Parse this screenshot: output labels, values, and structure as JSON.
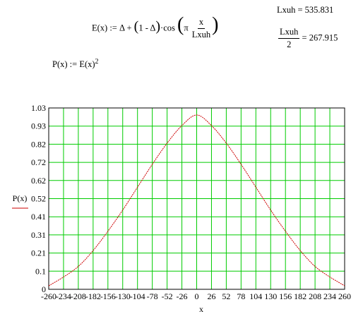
{
  "equations": {
    "E_def": {
      "lhs": "E(x) :=",
      "delta1": "Δ",
      "plus": "+",
      "paren_content_one": "1 -",
      "delta2": "Δ",
      "dot_cos": "·cos",
      "pi": "π",
      "frac_num": "x",
      "frac_den": "Lxuh"
    },
    "P_def": {
      "lhs": "P(x) :=",
      "rhs": "E(x)",
      "exponent": "2"
    },
    "Lxuh_value": {
      "text": "Lxuh = 535.831"
    },
    "half_value": {
      "num": "Lxuh",
      "den": "2",
      "result": "= 267.915"
    }
  },
  "chart_data": {
    "type": "line",
    "ylabel": "P(x)",
    "xlabel": "x",
    "xlim": [
      -260,
      260
    ],
    "ylim": [
      0,
      1.03
    ],
    "grid": true,
    "x_ticks": [
      "-260",
      "-234",
      "-208",
      "-182",
      "-156",
      "-130",
      "-104",
      "-78",
      "-52",
      "-26",
      "0",
      "26",
      "52",
      "78",
      "104",
      "130",
      "156",
      "182",
      "208",
      "234",
      "260"
    ],
    "y_ticks": [
      "0",
      "0.1",
      "0.21",
      "0.31",
      "0.41",
      "0.52",
      "0.62",
      "0.72",
      "0.82",
      "0.93",
      "1.03"
    ],
    "series": [
      {
        "color": "#cc0000",
        "x": [
          -260,
          -234,
          -208,
          -182,
          -156,
          -130,
          -104,
          -78,
          -52,
          -26,
          0,
          26,
          52,
          78,
          104,
          130,
          156,
          182,
          208,
          234,
          260
        ],
        "y": [
          0.02,
          0.07,
          0.13,
          0.22,
          0.33,
          0.45,
          0.58,
          0.71,
          0.83,
          0.93,
          0.99,
          0.93,
          0.83,
          0.71,
          0.58,
          0.45,
          0.33,
          0.22,
          0.13,
          0.07,
          0.02
        ]
      }
    ]
  },
  "colors": {
    "grid": "#00cc00",
    "trace": "#cc0000",
    "frame": "#000000"
  }
}
